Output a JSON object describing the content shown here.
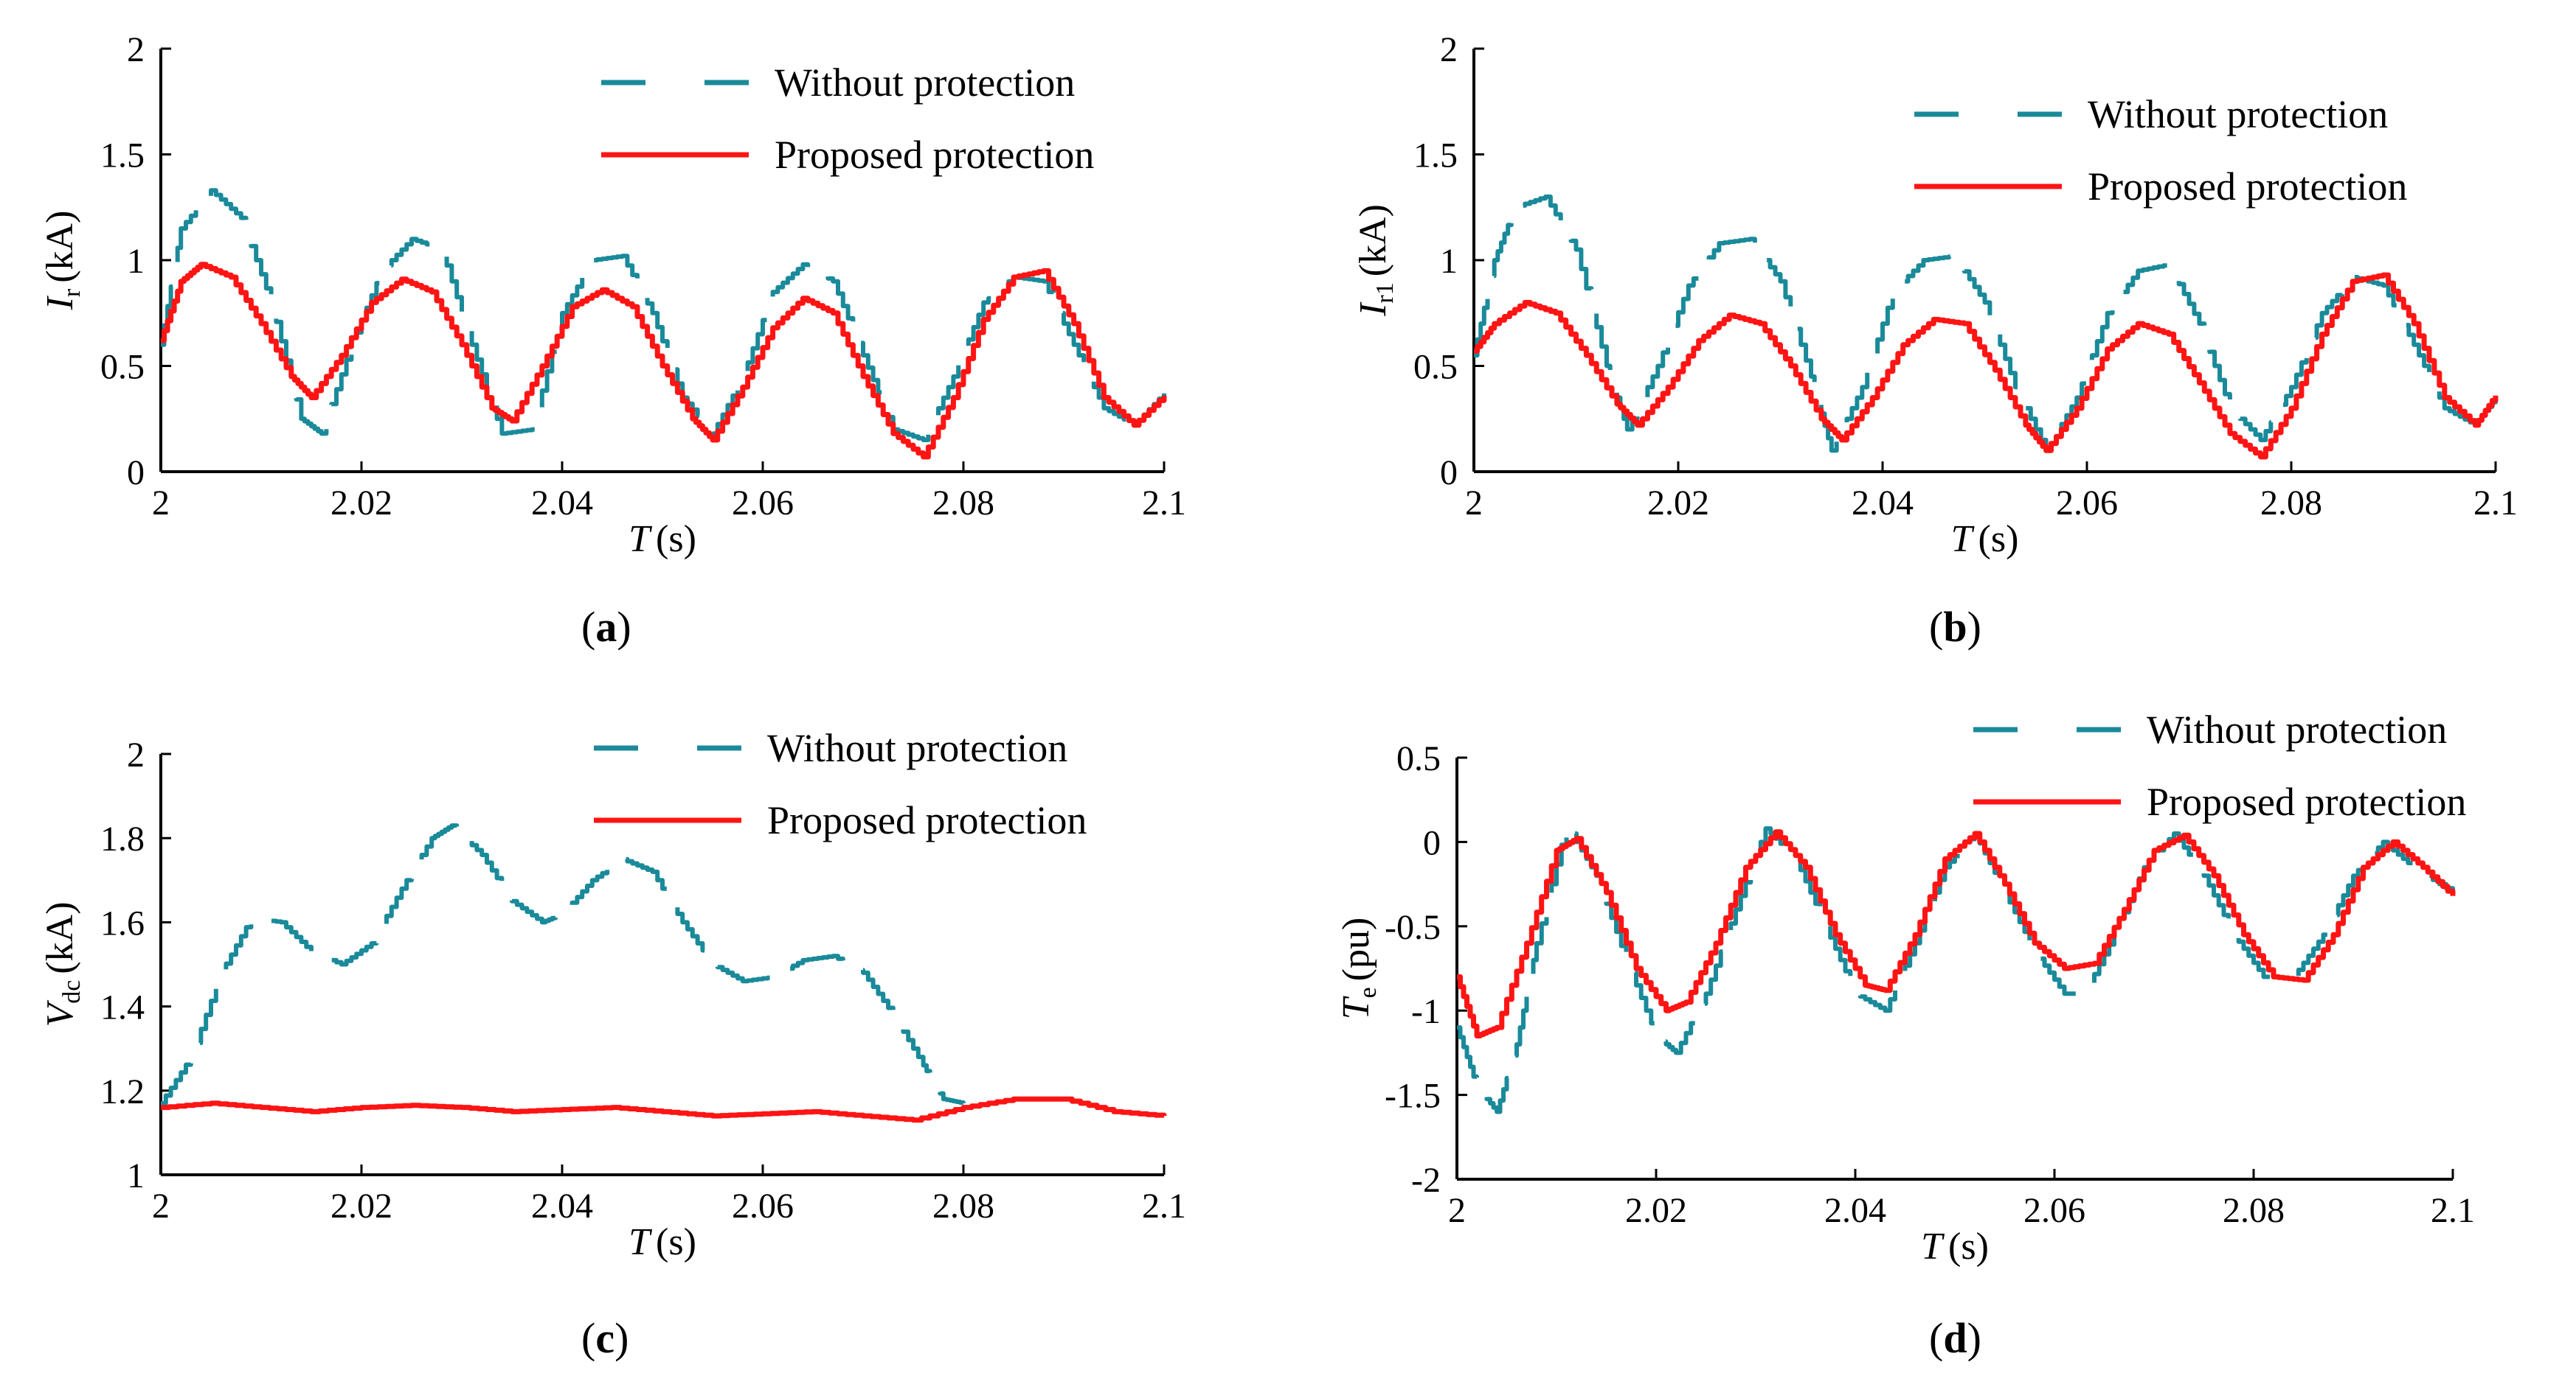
{
  "figure": {
    "series_styles": {
      "Without protection": {
        "color": "#1a8a9a",
        "dash": "dashed"
      },
      "Proposed protection": {
        "color": "#ff1414",
        "dash": "solid"
      }
    },
    "legend_labels": {
      "without": "Without protection",
      "proposed": "Proposed protection"
    }
  },
  "chart_data": [
    {
      "id": "a",
      "panel_label": "a",
      "type": "line",
      "ylabel_main": "I",
      "ylabel_sub": "r",
      "ylabel_unit": "(kA)",
      "xlabel_main": "T",
      "xlabel_unit": "(s)",
      "xlim": [
        2.0,
        2.1
      ],
      "ylim": [
        0,
        2
      ],
      "xticks": [
        "2",
        "2.02",
        "2.04",
        "2.06",
        "2.08",
        "2.1"
      ],
      "yticks": [
        "0",
        "0.5",
        "1",
        "1.5",
        "2"
      ],
      "series": [
        {
          "name": "Without protection",
          "x": [
            2.0,
            2.002,
            2.005,
            2.008,
            2.011,
            2.014,
            2.016,
            2.019,
            2.022,
            2.025,
            2.028,
            2.031,
            2.034,
            2.037,
            2.04,
            2.043,
            2.046,
            2.049,
            2.052,
            2.055,
            2.058,
            2.061,
            2.064,
            2.067,
            2.07,
            2.073,
            2.076,
            2.079,
            2.082,
            2.085,
            2.088,
            2.091,
            2.094,
            2.097,
            2.1
          ],
          "values": [
            0.6,
            1.15,
            1.33,
            1.2,
            0.8,
            0.25,
            0.18,
            0.6,
            0.95,
            1.1,
            1.05,
            0.6,
            0.18,
            0.2,
            0.75,
            1.0,
            1.02,
            0.75,
            0.35,
            0.18,
            0.45,
            0.85,
            0.98,
            0.9,
            0.55,
            0.2,
            0.15,
            0.45,
            0.8,
            0.92,
            0.9,
            0.6,
            0.3,
            0.22,
            0.37
          ]
        },
        {
          "name": "Proposed protection",
          "x": [
            2.0,
            2.002,
            2.004,
            2.007,
            2.01,
            2.013,
            2.015,
            2.018,
            2.021,
            2.024,
            2.027,
            2.03,
            2.033,
            2.035,
            2.038,
            2.041,
            2.044,
            2.047,
            2.05,
            2.053,
            2.055,
            2.058,
            2.061,
            2.064,
            2.067,
            2.07,
            2.073,
            2.076,
            2.079,
            2.082,
            2.085,
            2.088,
            2.091,
            2.094,
            2.097,
            2.1
          ],
          "values": [
            0.62,
            0.9,
            0.98,
            0.92,
            0.7,
            0.45,
            0.35,
            0.55,
            0.8,
            0.91,
            0.85,
            0.6,
            0.3,
            0.24,
            0.5,
            0.78,
            0.86,
            0.78,
            0.5,
            0.25,
            0.15,
            0.4,
            0.68,
            0.82,
            0.75,
            0.45,
            0.18,
            0.07,
            0.35,
            0.72,
            0.92,
            0.95,
            0.7,
            0.35,
            0.22,
            0.36
          ]
        }
      ]
    },
    {
      "id": "b",
      "panel_label": "b",
      "type": "line",
      "ylabel_main": "I",
      "ylabel_sub": "r1",
      "ylabel_unit": "(kA)",
      "xlabel_main": "T",
      "xlabel_unit": "(s)",
      "xlim": [
        2.0,
        2.1
      ],
      "ylim": [
        0,
        2
      ],
      "xticks": [
        "2",
        "2.02",
        "2.04",
        "2.06",
        "2.08",
        "2.1"
      ],
      "yticks": [
        "0",
        "0.5",
        "1",
        "1.5",
        "2"
      ],
      "series": [
        {
          "name": "Without protection",
          "x": [
            2.0,
            2.002,
            2.004,
            2.007,
            2.01,
            2.013,
            2.015,
            2.018,
            2.021,
            2.024,
            2.027,
            2.03,
            2.033,
            2.035,
            2.038,
            2.041,
            2.044,
            2.047,
            2.05,
            2.053,
            2.056,
            2.059,
            2.062,
            2.065,
            2.068,
            2.071,
            2.074,
            2.077,
            2.08,
            2.083,
            2.086,
            2.089,
            2.092,
            2.095,
            2.098,
            2.1
          ],
          "values": [
            0.55,
            1.0,
            1.25,
            1.3,
            1.05,
            0.5,
            0.2,
            0.5,
            0.88,
            1.08,
            1.1,
            0.9,
            0.45,
            0.1,
            0.4,
            0.85,
            1.0,
            1.02,
            0.8,
            0.4,
            0.1,
            0.35,
            0.75,
            0.95,
            0.98,
            0.7,
            0.3,
            0.15,
            0.4,
            0.75,
            0.92,
            0.88,
            0.6,
            0.3,
            0.22,
            0.35
          ]
        },
        {
          "name": "Proposed protection",
          "x": [
            2.0,
            2.002,
            2.005,
            2.008,
            2.011,
            2.014,
            2.016,
            2.019,
            2.022,
            2.025,
            2.028,
            2.031,
            2.034,
            2.036,
            2.039,
            2.042,
            2.045,
            2.048,
            2.051,
            2.054,
            2.056,
            2.059,
            2.062,
            2.065,
            2.068,
            2.071,
            2.074,
            2.077,
            2.08,
            2.083,
            2.086,
            2.089,
            2.092,
            2.095,
            2.098,
            2.1
          ],
          "values": [
            0.57,
            0.7,
            0.8,
            0.75,
            0.55,
            0.32,
            0.22,
            0.4,
            0.62,
            0.74,
            0.7,
            0.5,
            0.25,
            0.15,
            0.35,
            0.6,
            0.72,
            0.7,
            0.48,
            0.22,
            0.1,
            0.3,
            0.58,
            0.7,
            0.65,
            0.42,
            0.18,
            0.07,
            0.3,
            0.65,
            0.9,
            0.93,
            0.7,
            0.35,
            0.22,
            0.36
          ]
        }
      ]
    },
    {
      "id": "c",
      "panel_label": "c",
      "type": "line",
      "ylabel_main": "V",
      "ylabel_sub": "dc",
      "ylabel_unit": "(kA)",
      "xlabel_main": "T",
      "xlabel_unit": "(s)",
      "xlim": [
        2.0,
        2.1
      ],
      "ylim": [
        1.0,
        2.0
      ],
      "xticks": [
        "2",
        "2.02",
        "2.04",
        "2.06",
        "2.08",
        "2.1"
      ],
      "yticks": [
        "1",
        "1.2",
        "1.4",
        "1.6",
        "1.8",
        "2"
      ],
      "series": [
        {
          "name": "Without protection",
          "x": [
            2.0,
            2.003,
            2.006,
            2.009,
            2.012,
            2.015,
            2.018,
            2.021,
            2.024,
            2.027,
            2.029,
            2.032,
            2.035,
            2.038,
            2.04,
            2.043,
            2.046,
            2.049,
            2.052,
            2.055,
            2.058,
            2.061,
            2.064,
            2.067,
            2.07,
            2.073,
            2.076,
            2.078,
            2.08
          ],
          "values": [
            1.17,
            1.28,
            1.48,
            1.61,
            1.6,
            1.53,
            1.5,
            1.55,
            1.68,
            1.8,
            1.83,
            1.76,
            1.65,
            1.6,
            1.62,
            1.7,
            1.75,
            1.72,
            1.6,
            1.5,
            1.46,
            1.47,
            1.51,
            1.52,
            1.48,
            1.38,
            1.26,
            1.18,
            1.17
          ]
        },
        {
          "name": "Proposed protection",
          "x": [
            2.0,
            2.005,
            2.01,
            2.015,
            2.02,
            2.025,
            2.03,
            2.035,
            2.04,
            2.045,
            2.05,
            2.055,
            2.06,
            2.065,
            2.07,
            2.075,
            2.08,
            2.085,
            2.09,
            2.095,
            2.1
          ],
          "values": [
            1.16,
            1.17,
            1.16,
            1.15,
            1.16,
            1.165,
            1.16,
            1.15,
            1.155,
            1.16,
            1.15,
            1.14,
            1.145,
            1.15,
            1.14,
            1.13,
            1.16,
            1.18,
            1.18,
            1.15,
            1.14
          ]
        }
      ]
    },
    {
      "id": "d",
      "panel_label": "d",
      "type": "line",
      "ylabel_main": "T",
      "ylabel_sub": "e",
      "ylabel_unit": "(pu)",
      "xlabel_main": "T",
      "xlabel_unit": "(s)",
      "xlim": [
        2.0,
        2.1
      ],
      "ylim": [
        -2.0,
        0.5
      ],
      "xticks": [
        "2",
        "2.02",
        "2.04",
        "2.06",
        "2.08",
        "2.1"
      ],
      "yticks": [
        "-2",
        "-1.5",
        "-1",
        "-0.5",
        "0",
        "0.5"
      ],
      "series": [
        {
          "name": "Without protection",
          "x": [
            2.0,
            2.002,
            2.004,
            2.006,
            2.008,
            2.011,
            2.014,
            2.017,
            2.02,
            2.022,
            2.025,
            2.028,
            2.031,
            2.034,
            2.037,
            2.04,
            2.043,
            2.046,
            2.049,
            2.052,
            2.055,
            2.058,
            2.061,
            2.063,
            2.066,
            2.069,
            2.072,
            2.075,
            2.078,
            2.081,
            2.084,
            2.087,
            2.09,
            2.093,
            2.096,
            2.1
          ],
          "values": [
            -1.1,
            -1.45,
            -1.6,
            -1.2,
            -0.6,
            0.1,
            -0.2,
            -0.7,
            -1.15,
            -1.25,
            -0.9,
            -0.4,
            0.08,
            -0.1,
            -0.5,
            -0.9,
            -1.0,
            -0.6,
            -0.15,
            0.05,
            -0.3,
            -0.65,
            -0.9,
            -0.9,
            -0.55,
            -0.15,
            0.05,
            -0.2,
            -0.55,
            -0.8,
            -0.8,
            -0.55,
            -0.2,
            0.0,
            -0.15,
            -0.3
          ]
        },
        {
          "name": "Proposed protection",
          "x": [
            2.0,
            2.002,
            2.004,
            2.007,
            2.01,
            2.012,
            2.015,
            2.018,
            2.021,
            2.023,
            2.026,
            2.029,
            2.032,
            2.035,
            2.038,
            2.041,
            2.043,
            2.046,
            2.049,
            2.052,
            2.055,
            2.058,
            2.061,
            2.064,
            2.067,
            2.07,
            2.073,
            2.076,
            2.079,
            2.082,
            2.085,
            2.088,
            2.091,
            2.094,
            2.097,
            2.1
          ],
          "values": [
            -0.8,
            -1.15,
            -1.1,
            -0.6,
            -0.05,
            0.02,
            -0.3,
            -0.75,
            -1.0,
            -0.95,
            -0.6,
            -0.15,
            0.06,
            -0.15,
            -0.55,
            -0.85,
            -0.88,
            -0.55,
            -0.1,
            0.05,
            -0.25,
            -0.6,
            -0.75,
            -0.72,
            -0.4,
            -0.05,
            0.04,
            -0.2,
            -0.55,
            -0.8,
            -0.82,
            -0.55,
            -0.15,
            0.0,
            -0.15,
            -0.32
          ]
        }
      ]
    }
  ]
}
